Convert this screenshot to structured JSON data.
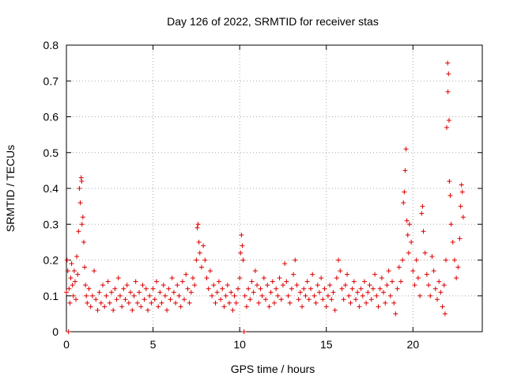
{
  "chart_data": {
    "type": "scatter",
    "title": "Day 126 of 2022, SRMTID for receiver stas",
    "xlabel": "GPS time / hours",
    "ylabel": "SRMTID / TECUs",
    "xlim": [
      0,
      24
    ],
    "ylim": [
      0,
      0.8
    ],
    "xticks": [
      0,
      5,
      10,
      15,
      20
    ],
    "xtick_labels": [
      "0",
      "5",
      "10",
      "15",
      "20"
    ],
    "yticks": [
      0,
      0.1,
      0.2,
      0.3,
      0.4,
      0.5,
      0.6,
      0.7,
      0.8
    ],
    "ytick_labels": [
      "0",
      "0.1",
      "0.2",
      "0.3",
      "0.4",
      "0.5",
      "0.6",
      "0.7",
      "0.8"
    ],
    "grid": true,
    "marker": "+",
    "series": [
      {
        "name": "stas",
        "color": "#dd0000",
        "points": [
          [
            0.0,
            0.11
          ],
          [
            0.04,
            0.2
          ],
          [
            0.08,
            0.17
          ],
          [
            0.12,
            0.0
          ],
          [
            0.15,
            0.12
          ],
          [
            0.2,
            0.08
          ],
          [
            0.25,
            0.15
          ],
          [
            0.3,
            0.19
          ],
          [
            0.35,
            0.13
          ],
          [
            0.4,
            0.1
          ],
          [
            0.45,
            0.17
          ],
          [
            0.5,
            0.14
          ],
          [
            0.55,
            0.09
          ],
          [
            0.6,
            0.21
          ],
          [
            0.65,
            0.16
          ],
          [
            0.7,
            0.28
          ],
          [
            0.75,
            0.4
          ],
          [
            0.8,
            0.36
          ],
          [
            0.85,
            0.43
          ],
          [
            0.88,
            0.42
          ],
          [
            0.9,
            0.3
          ],
          [
            0.95,
            0.32
          ],
          [
            1.0,
            0.25
          ],
          [
            1.05,
            0.18
          ],
          [
            1.1,
            0.13
          ],
          [
            1.15,
            0.1
          ],
          [
            1.2,
            0.08
          ],
          [
            1.3,
            0.12
          ],
          [
            1.4,
            0.07
          ],
          [
            1.5,
            0.1
          ],
          [
            1.6,
            0.17
          ],
          [
            1.7,
            0.09
          ],
          [
            1.8,
            0.06
          ],
          [
            1.9,
            0.11
          ],
          [
            2.0,
            0.08
          ],
          [
            2.1,
            0.13
          ],
          [
            2.2,
            0.07
          ],
          [
            2.3,
            0.1
          ],
          [
            2.4,
            0.14
          ],
          [
            2.5,
            0.08
          ],
          [
            2.6,
            0.11
          ],
          [
            2.7,
            0.06
          ],
          [
            2.8,
            0.12
          ],
          [
            2.9,
            0.09
          ],
          [
            3.0,
            0.15
          ],
          [
            3.1,
            0.1
          ],
          [
            3.2,
            0.07
          ],
          [
            3.3,
            0.12
          ],
          [
            3.4,
            0.09
          ],
          [
            3.5,
            0.13
          ],
          [
            3.6,
            0.08
          ],
          [
            3.7,
            0.11
          ],
          [
            3.8,
            0.06
          ],
          [
            3.9,
            0.1
          ],
          [
            4.0,
            0.14
          ],
          [
            4.1,
            0.08
          ],
          [
            4.2,
            0.11
          ],
          [
            4.3,
            0.07
          ],
          [
            4.4,
            0.13
          ],
          [
            4.5,
            0.09
          ],
          [
            4.6,
            0.12
          ],
          [
            4.7,
            0.06
          ],
          [
            4.8,
            0.1
          ],
          [
            4.9,
            0.08
          ],
          [
            5.0,
            0.12
          ],
          [
            5.1,
            0.09
          ],
          [
            5.2,
            0.14
          ],
          [
            5.3,
            0.07
          ],
          [
            5.4,
            0.11
          ],
          [
            5.5,
            0.08
          ],
          [
            5.6,
            0.13
          ],
          [
            5.7,
            0.1
          ],
          [
            5.8,
            0.06
          ],
          [
            5.9,
            0.12
          ],
          [
            6.0,
            0.09
          ],
          [
            6.1,
            0.15
          ],
          [
            6.2,
            0.11
          ],
          [
            6.3,
            0.08
          ],
          [
            6.4,
            0.13
          ],
          [
            6.5,
            0.1
          ],
          [
            6.6,
            0.07
          ],
          [
            6.7,
            0.14
          ],
          [
            6.8,
            0.09
          ],
          [
            6.9,
            0.16
          ],
          [
            7.0,
            0.12
          ],
          [
            7.1,
            0.08
          ],
          [
            7.2,
            0.11
          ],
          [
            7.3,
            0.15
          ],
          [
            7.4,
            0.13
          ],
          [
            7.5,
            0.2
          ],
          [
            7.55,
            0.29
          ],
          [
            7.6,
            0.3
          ],
          [
            7.65,
            0.25
          ],
          [
            7.7,
            0.22
          ],
          [
            7.8,
            0.18
          ],
          [
            7.9,
            0.24
          ],
          [
            8.0,
            0.2
          ],
          [
            8.1,
            0.15
          ],
          [
            8.2,
            0.12
          ],
          [
            8.3,
            0.17
          ],
          [
            8.4,
            0.1
          ],
          [
            8.5,
            0.13
          ],
          [
            8.6,
            0.08
          ],
          [
            8.7,
            0.11
          ],
          [
            8.8,
            0.14
          ],
          [
            8.9,
            0.09
          ],
          [
            9.0,
            0.12
          ],
          [
            9.1,
            0.07
          ],
          [
            9.2,
            0.1
          ],
          [
            9.3,
            0.13
          ],
          [
            9.4,
            0.08
          ],
          [
            9.5,
            0.11
          ],
          [
            9.6,
            0.06
          ],
          [
            9.7,
            0.1
          ],
          [
            9.8,
            0.08
          ],
          [
            9.9,
            0.12
          ],
          [
            10.0,
            0.15
          ],
          [
            10.05,
            0.22
          ],
          [
            10.1,
            0.27
          ],
          [
            10.15,
            0.24
          ],
          [
            10.2,
            0.2
          ],
          [
            10.25,
            0.0
          ],
          [
            10.3,
            0.1
          ],
          [
            10.4,
            0.07
          ],
          [
            10.5,
            0.12
          ],
          [
            10.6,
            0.09
          ],
          [
            10.7,
            0.14
          ],
          [
            10.8,
            0.11
          ],
          [
            10.9,
            0.17
          ],
          [
            11.0,
            0.13
          ],
          [
            11.1,
            0.08
          ],
          [
            11.2,
            0.12
          ],
          [
            11.3,
            0.1
          ],
          [
            11.4,
            0.15
          ],
          [
            11.5,
            0.09
          ],
          [
            11.6,
            0.13
          ],
          [
            11.7,
            0.07
          ],
          [
            11.8,
            0.11
          ],
          [
            11.9,
            0.14
          ],
          [
            12.0,
            0.08
          ],
          [
            12.1,
            0.12
          ],
          [
            12.2,
            0.1
          ],
          [
            12.3,
            0.15
          ],
          [
            12.4,
            0.09
          ],
          [
            12.5,
            0.13
          ],
          [
            12.6,
            0.19
          ],
          [
            12.7,
            0.14
          ],
          [
            12.8,
            0.1
          ],
          [
            12.9,
            0.08
          ],
          [
            13.0,
            0.12
          ],
          [
            13.1,
            0.16
          ],
          [
            13.2,
            0.2
          ],
          [
            13.3,
            0.13
          ],
          [
            13.4,
            0.09
          ],
          [
            13.5,
            0.11
          ],
          [
            13.6,
            0.07
          ],
          [
            13.7,
            0.12
          ],
          [
            13.8,
            0.1
          ],
          [
            13.9,
            0.14
          ],
          [
            14.0,
            0.09
          ],
          [
            14.1,
            0.12
          ],
          [
            14.2,
            0.16
          ],
          [
            14.3,
            0.1
          ],
          [
            14.4,
            0.08
          ],
          [
            14.5,
            0.13
          ],
          [
            14.6,
            0.11
          ],
          [
            14.7,
            0.15
          ],
          [
            14.8,
            0.09
          ],
          [
            14.9,
            0.12
          ],
          [
            15.0,
            0.07
          ],
          [
            15.1,
            0.1
          ],
          [
            15.2,
            0.13
          ],
          [
            15.3,
            0.09
          ],
          [
            15.4,
            0.11
          ],
          [
            15.5,
            0.06
          ],
          [
            15.6,
            0.15
          ],
          [
            15.7,
            0.2
          ],
          [
            15.8,
            0.17
          ],
          [
            15.9,
            0.12
          ],
          [
            16.0,
            0.09
          ],
          [
            16.1,
            0.13
          ],
          [
            16.2,
            0.16
          ],
          [
            16.3,
            0.1
          ],
          [
            16.4,
            0.08
          ],
          [
            16.5,
            0.12
          ],
          [
            16.6,
            0.14
          ],
          [
            16.7,
            0.09
          ],
          [
            16.8,
            0.11
          ],
          [
            16.9,
            0.07
          ],
          [
            17.0,
            0.12
          ],
          [
            17.1,
            0.1
          ],
          [
            17.2,
            0.14
          ],
          [
            17.3,
            0.08
          ],
          [
            17.4,
            0.11
          ],
          [
            17.5,
            0.13
          ],
          [
            17.6,
            0.09
          ],
          [
            17.7,
            0.12
          ],
          [
            17.8,
            0.16
          ],
          [
            17.9,
            0.1
          ],
          [
            18.0,
            0.07
          ],
          [
            18.1,
            0.12
          ],
          [
            18.2,
            0.15
          ],
          [
            18.3,
            0.11
          ],
          [
            18.4,
            0.08
          ],
          [
            18.5,
            0.13
          ],
          [
            18.6,
            0.17
          ],
          [
            18.7,
            0.1
          ],
          [
            18.8,
            0.14
          ],
          [
            18.9,
            0.08
          ],
          [
            19.0,
            0.05
          ],
          [
            19.1,
            0.12
          ],
          [
            19.2,
            0.18
          ],
          [
            19.3,
            0.14
          ],
          [
            19.4,
            0.2
          ],
          [
            19.45,
            0.36
          ],
          [
            19.5,
            0.39
          ],
          [
            19.55,
            0.45
          ],
          [
            19.6,
            0.51
          ],
          [
            19.65,
            0.31
          ],
          [
            19.7,
            0.27
          ],
          [
            19.75,
            0.22
          ],
          [
            19.8,
            0.3
          ],
          [
            19.9,
            0.25
          ],
          [
            20.0,
            0.17
          ],
          [
            20.1,
            0.13
          ],
          [
            20.2,
            0.2
          ],
          [
            20.3,
            0.15
          ],
          [
            20.4,
            0.1
          ],
          [
            20.5,
            0.33
          ],
          [
            20.55,
            0.35
          ],
          [
            20.6,
            0.28
          ],
          [
            20.7,
            0.22
          ],
          [
            20.8,
            0.16
          ],
          [
            20.9,
            0.13
          ],
          [
            21.0,
            0.1
          ],
          [
            21.1,
            0.21
          ],
          [
            21.2,
            0.17
          ],
          [
            21.3,
            0.12
          ],
          [
            21.4,
            0.09
          ],
          [
            21.5,
            0.14
          ],
          [
            21.6,
            0.11
          ],
          [
            21.7,
            0.07
          ],
          [
            21.8,
            0.13
          ],
          [
            21.85,
            0.05
          ],
          [
            21.9,
            0.2
          ],
          [
            21.95,
            0.57
          ],
          [
            22.0,
            0.75
          ],
          [
            22.02,
            0.67
          ],
          [
            22.05,
            0.72
          ],
          [
            22.08,
            0.59
          ],
          [
            22.1,
            0.42
          ],
          [
            22.15,
            0.38
          ],
          [
            22.2,
            0.3
          ],
          [
            22.3,
            0.25
          ],
          [
            22.4,
            0.2
          ],
          [
            22.5,
            0.15
          ],
          [
            22.6,
            0.18
          ],
          [
            22.7,
            0.26
          ],
          [
            22.75,
            0.35
          ],
          [
            22.8,
            0.41
          ],
          [
            22.85,
            0.39
          ],
          [
            22.9,
            0.32
          ]
        ]
      }
    ]
  }
}
